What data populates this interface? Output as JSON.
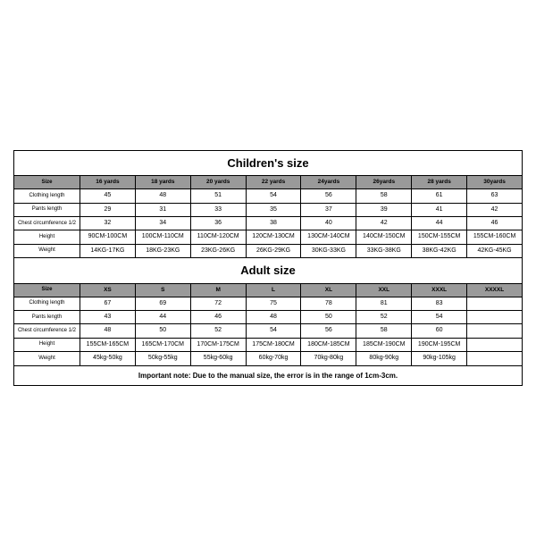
{
  "children": {
    "title": "Children's size",
    "headers": [
      "Size",
      "16 yards",
      "18 yards",
      "20 yards",
      "22 yards",
      "24yards",
      "26yards",
      "28 yards",
      "30yards"
    ],
    "rowLabels": [
      "Clothing length",
      "Pants length",
      "Chest circumference 1/2",
      "Height",
      "Weight"
    ],
    "rows": [
      [
        "45",
        "48",
        "51",
        "54",
        "56",
        "58",
        "61",
        "63"
      ],
      [
        "29",
        "31",
        "33",
        "35",
        "37",
        "39",
        "41",
        "42"
      ],
      [
        "32",
        "34",
        "36",
        "38",
        "40",
        "42",
        "44",
        "46"
      ],
      [
        "90CM-100CM",
        "100CM-110CM",
        "110CM-120CM",
        "120CM-130CM",
        "130CM-140CM",
        "140CM-150CM",
        "150CM-155CM",
        "155CM-160CM"
      ],
      [
        "14KG-17KG",
        "18KG-23KG",
        "23KG-26KG",
        "26KG-29KG",
        "30KG-33KG",
        "33KG-38KG",
        "38KG-42KG",
        "42KG-45KG"
      ]
    ]
  },
  "adult": {
    "title": "Adult size",
    "headers": [
      "Size",
      "XS",
      "S",
      "M",
      "L",
      "XL",
      "XXL",
      "XXXL",
      "XXXXL"
    ],
    "rowLabels": [
      "Clothing length",
      "Pants length",
      "Chest circumference 1/2",
      "Height",
      "Weight"
    ],
    "rows": [
      [
        "67",
        "69",
        "72",
        "75",
        "78",
        "81",
        "83",
        ""
      ],
      [
        "43",
        "44",
        "46",
        "48",
        "50",
        "52",
        "54",
        ""
      ],
      [
        "48",
        "50",
        "52",
        "54",
        "56",
        "58",
        "60",
        ""
      ],
      [
        "155CM-165CM",
        "165CM-170CM",
        "170CM-175CM",
        "175CM-180CM",
        "180CM-185CM",
        "185CM-190CM",
        "190CM-195CM",
        ""
      ],
      [
        "45kg-50kg",
        "50kg-55kg",
        "55kg-60kg",
        "60kg-70kg",
        "70kg-80kg",
        "80kg-90kg",
        "90kg-105kg",
        ""
      ]
    ]
  },
  "note": "Important note: Due to the manual size, the error is in the range of 1cm-3cm.",
  "style": {
    "header_bg": "#9a9a9a",
    "border_color": "#000000",
    "title_fontsize": 13,
    "cell_fontsize": 7,
    "label_fontsize": 6
  }
}
